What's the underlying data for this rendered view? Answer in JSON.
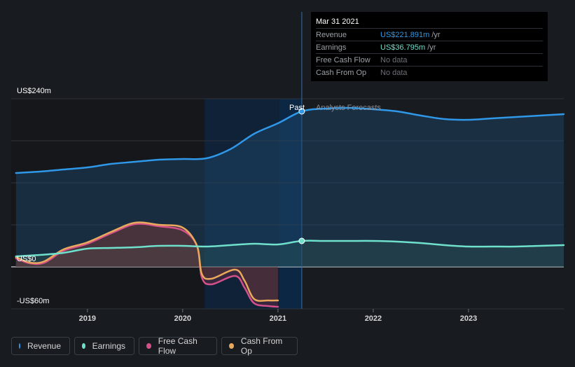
{
  "tooltip": {
    "date": "Mar 31 2021",
    "rows": [
      {
        "label": "Revenue",
        "value": "US$221.891m",
        "unit": "/yr",
        "color": "#2f98e8"
      },
      {
        "label": "Earnings",
        "value": "US$36.795m",
        "unit": "/yr",
        "color": "#6fe0cc"
      },
      {
        "label": "Free Cash Flow",
        "nodata": "No data"
      },
      {
        "label": "Cash From Op",
        "nodata": "No data"
      }
    ]
  },
  "labels": {
    "past": "Past",
    "forecast": "Analysts Forecasts"
  },
  "legend": [
    {
      "name": "Revenue",
      "color": "#2f98e8"
    },
    {
      "name": "Earnings",
      "color": "#6fe0cc"
    },
    {
      "name": "Free Cash Flow",
      "color": "#d4508a"
    },
    {
      "name": "Cash From Op",
      "color": "#e8a95c"
    }
  ],
  "chart_data": {
    "type": "line",
    "y_ticks": [
      {
        "value": 240,
        "label": "US$240m"
      },
      {
        "value": 0,
        "label": "US$0"
      },
      {
        "value": -60,
        "label": "-US$60m"
      }
    ],
    "ylim": [
      -60,
      240
    ],
    "xlim": [
      2018.2,
      2024.0
    ],
    "x_ticks": [
      {
        "value": 2019,
        "label": "2019"
      },
      {
        "value": 2020,
        "label": "2020"
      },
      {
        "value": 2021,
        "label": "2021"
      },
      {
        "value": 2022,
        "label": "2022"
      },
      {
        "value": 2023,
        "label": "2023"
      }
    ],
    "highlight_range": [
      2020.23,
      2021.25
    ],
    "past_end": 2021.25,
    "grid": true,
    "legend_position": "bottom-left",
    "series": [
      {
        "name": "Revenue",
        "color": "#2f98e8",
        "points": [
          [
            2018.25,
            134
          ],
          [
            2018.5,
            136
          ],
          [
            2018.75,
            139
          ],
          [
            2019.0,
            142
          ],
          [
            2019.25,
            147
          ],
          [
            2019.5,
            150
          ],
          [
            2019.75,
            153
          ],
          [
            2020.0,
            154
          ],
          [
            2020.25,
            155
          ],
          [
            2020.5,
            168
          ],
          [
            2020.75,
            190
          ],
          [
            2021.0,
            205
          ],
          [
            2021.25,
            222
          ],
          [
            2021.5,
            226
          ],
          [
            2021.75,
            227
          ],
          [
            2022.0,
            225
          ],
          [
            2022.25,
            222
          ],
          [
            2022.5,
            216
          ],
          [
            2022.75,
            211
          ],
          [
            2023.0,
            210
          ],
          [
            2023.25,
            212
          ],
          [
            2023.5,
            214
          ],
          [
            2023.75,
            216
          ],
          [
            2024.0,
            218
          ]
        ]
      },
      {
        "name": "Earnings",
        "color": "#6fe0cc",
        "points": [
          [
            2018.25,
            15
          ],
          [
            2018.5,
            17
          ],
          [
            2018.75,
            20
          ],
          [
            2019.0,
            26
          ],
          [
            2019.25,
            27
          ],
          [
            2019.5,
            28
          ],
          [
            2019.75,
            30
          ],
          [
            2020.0,
            30
          ],
          [
            2020.25,
            29
          ],
          [
            2020.5,
            31
          ],
          [
            2020.75,
            33
          ],
          [
            2021.0,
            32
          ],
          [
            2021.25,
            37
          ],
          [
            2021.5,
            37
          ],
          [
            2021.75,
            37
          ],
          [
            2022.0,
            37
          ],
          [
            2022.25,
            36
          ],
          [
            2022.5,
            34
          ],
          [
            2022.75,
            31
          ],
          [
            2023.0,
            29
          ],
          [
            2023.25,
            29
          ],
          [
            2023.5,
            29
          ],
          [
            2023.75,
            30
          ],
          [
            2024.0,
            31
          ]
        ]
      },
      {
        "name": "Free Cash Flow",
        "color": "#d4508a",
        "points": [
          [
            2018.25,
            12
          ],
          [
            2018.4,
            5
          ],
          [
            2018.55,
            6
          ],
          [
            2018.75,
            23
          ],
          [
            2019.0,
            33
          ],
          [
            2019.25,
            48
          ],
          [
            2019.5,
            61
          ],
          [
            2019.75,
            58
          ],
          [
            2020.0,
            52
          ],
          [
            2020.15,
            30
          ],
          [
            2020.2,
            -15
          ],
          [
            2020.3,
            -25
          ],
          [
            2020.55,
            -13
          ],
          [
            2020.65,
            -30
          ],
          [
            2020.75,
            -52
          ],
          [
            2020.9,
            -56
          ],
          [
            2021.0,
            -57
          ]
        ]
      },
      {
        "name": "Cash From Op",
        "color": "#e8a95c",
        "points": [
          [
            2018.25,
            14
          ],
          [
            2018.4,
            6
          ],
          [
            2018.55,
            8
          ],
          [
            2018.75,
            25
          ],
          [
            2019.0,
            35
          ],
          [
            2019.25,
            50
          ],
          [
            2019.5,
            63
          ],
          [
            2019.75,
            60
          ],
          [
            2020.0,
            56
          ],
          [
            2020.15,
            30
          ],
          [
            2020.2,
            -10
          ],
          [
            2020.3,
            -17
          ],
          [
            2020.55,
            -4
          ],
          [
            2020.65,
            -20
          ],
          [
            2020.75,
            -46
          ],
          [
            2020.9,
            -48
          ],
          [
            2021.0,
            -48
          ]
        ]
      }
    ]
  }
}
